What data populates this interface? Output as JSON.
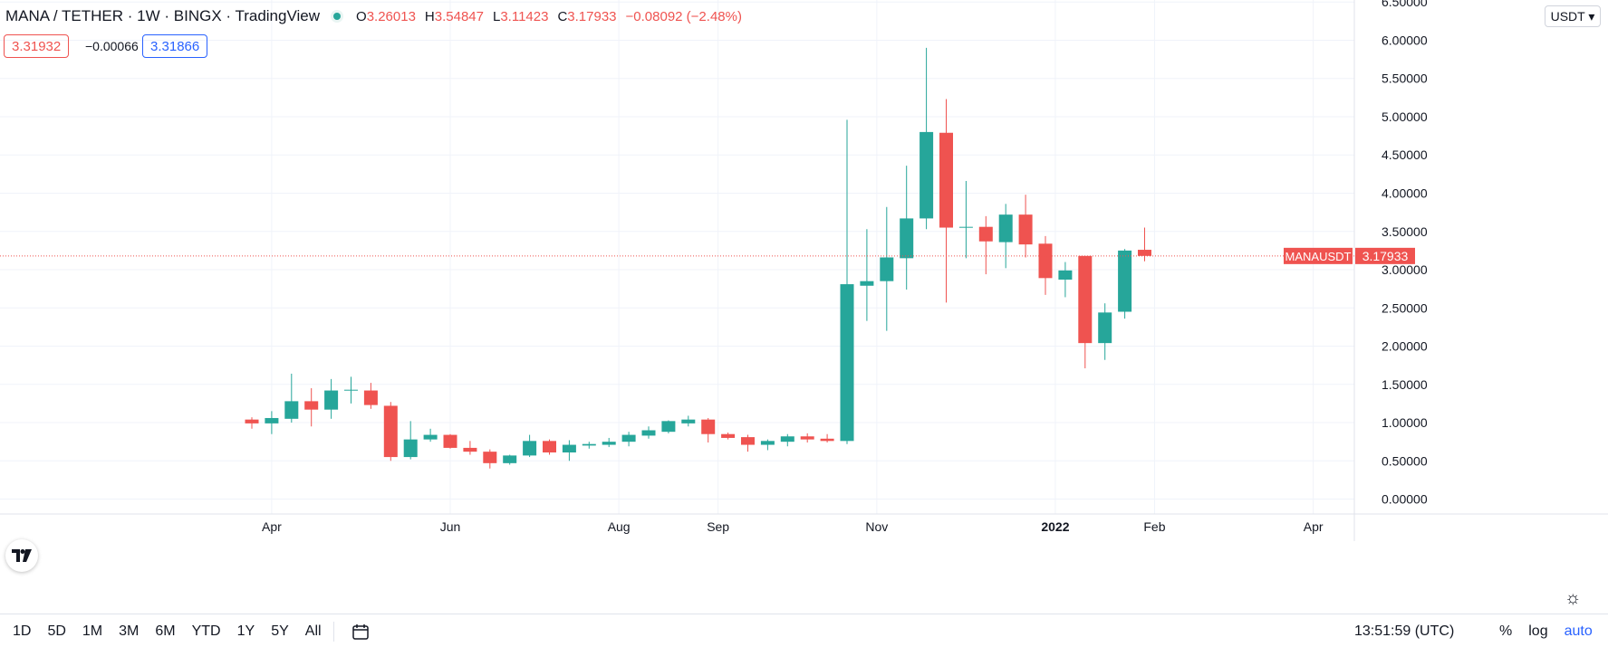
{
  "header": {
    "symbol": "MANA / TETHER · 1W · BINGX · TradingView",
    "ohlc": {
      "o_label": "O",
      "o": "3.26013",
      "h_label": "H",
      "h": "3.54847",
      "l_label": "L",
      "l": "3.11423",
      "c_label": "C",
      "c": "3.17933",
      "change": "−0.08092 (−2.48%)"
    },
    "bid": "3.31932",
    "spread": "−0.00066",
    "ask": "3.31866"
  },
  "currency_selector": "USDT",
  "current_price_label": {
    "symbol": "MANAUSDT",
    "price": "3.17933"
  },
  "bottom_bar": {
    "ranges": [
      "1D",
      "5D",
      "1M",
      "3M",
      "6M",
      "YTD",
      "1Y",
      "5Y",
      "All"
    ],
    "time": "13:51:59 (UTC)",
    "percent": "%",
    "log": "log",
    "auto": "auto"
  },
  "colors": {
    "up": "#26a69a",
    "down": "#ef5350",
    "grid": "#f0f3fa",
    "price_line": "#ef5350"
  },
  "chart_data": {
    "type": "candlestick",
    "y_ticks": [
      "0.00000",
      "0.50000",
      "1.00000",
      "1.50000",
      "2.00000",
      "2.50000",
      "3.00000",
      "3.50000",
      "4.00000",
      "4.50000",
      "5.00000",
      "5.50000",
      "6.00000",
      "6.50000"
    ],
    "y_range": [
      -0.1,
      6.55
    ],
    "x_ticks": [
      "Apr",
      "Jun",
      "Aug",
      "Sep",
      "Nov",
      "2022",
      "Feb",
      "Apr"
    ],
    "x_tick_index": [
      1.0,
      10.0,
      18.5,
      23.5,
      31.5,
      40.5,
      45.5,
      53.5
    ],
    "last_price": 3.17933,
    "candles": [
      {
        "o": 1.04,
        "h": 1.07,
        "l": 0.92,
        "c": 0.99
      },
      {
        "o": 0.99,
        "h": 1.15,
        "l": 0.85,
        "c": 1.06
      },
      {
        "o": 1.05,
        "h": 1.64,
        "l": 1.0,
        "c": 1.28
      },
      {
        "o": 1.28,
        "h": 1.45,
        "l": 0.95,
        "c": 1.17
      },
      {
        "o": 1.17,
        "h": 1.57,
        "l": 1.05,
        "c": 1.42
      },
      {
        "o": 1.42,
        "h": 1.6,
        "l": 1.25,
        "c": 1.43
      },
      {
        "o": 1.42,
        "h": 1.52,
        "l": 1.18,
        "c": 1.23
      },
      {
        "o": 1.22,
        "h": 1.27,
        "l": 0.5,
        "c": 0.55
      },
      {
        "o": 0.55,
        "h": 1.02,
        "l": 0.52,
        "c": 0.78
      },
      {
        "o": 0.78,
        "h": 0.92,
        "l": 0.75,
        "c": 0.84
      },
      {
        "o": 0.84,
        "h": 0.85,
        "l": 0.66,
        "c": 0.67
      },
      {
        "o": 0.67,
        "h": 0.76,
        "l": 0.58,
        "c": 0.62
      },
      {
        "o": 0.62,
        "h": 0.65,
        "l": 0.4,
        "c": 0.47
      },
      {
        "o": 0.47,
        "h": 0.58,
        "l": 0.45,
        "c": 0.57
      },
      {
        "o": 0.57,
        "h": 0.84,
        "l": 0.55,
        "c": 0.76
      },
      {
        "o": 0.76,
        "h": 0.78,
        "l": 0.58,
        "c": 0.61
      },
      {
        "o": 0.61,
        "h": 0.77,
        "l": 0.5,
        "c": 0.71
      },
      {
        "o": 0.7,
        "h": 0.75,
        "l": 0.66,
        "c": 0.72
      },
      {
        "o": 0.71,
        "h": 0.8,
        "l": 0.68,
        "c": 0.75
      },
      {
        "o": 0.75,
        "h": 0.88,
        "l": 0.69,
        "c": 0.84
      },
      {
        "o": 0.83,
        "h": 0.95,
        "l": 0.79,
        "c": 0.9
      },
      {
        "o": 0.88,
        "h": 1.03,
        "l": 0.86,
        "c": 1.02
      },
      {
        "o": 0.99,
        "h": 1.09,
        "l": 0.95,
        "c": 1.04
      },
      {
        "o": 1.04,
        "h": 1.06,
        "l": 0.74,
        "c": 0.85
      },
      {
        "o": 0.85,
        "h": 0.87,
        "l": 0.78,
        "c": 0.8
      },
      {
        "o": 0.81,
        "h": 0.84,
        "l": 0.62,
        "c": 0.71
      },
      {
        "o": 0.71,
        "h": 0.78,
        "l": 0.64,
        "c": 0.76
      },
      {
        "o": 0.75,
        "h": 0.85,
        "l": 0.69,
        "c": 0.82
      },
      {
        "o": 0.82,
        "h": 0.86,
        "l": 0.74,
        "c": 0.78
      },
      {
        "o": 0.79,
        "h": 0.85,
        "l": 0.74,
        "c": 0.76
      },
      {
        "o": 0.76,
        "h": 4.96,
        "l": 0.72,
        "c": 2.81
      },
      {
        "o": 2.79,
        "h": 3.53,
        "l": 2.33,
        "c": 2.85
      },
      {
        "o": 2.85,
        "h": 3.82,
        "l": 2.2,
        "c": 3.16
      },
      {
        "o": 3.15,
        "h": 4.36,
        "l": 2.74,
        "c": 3.67
      },
      {
        "o": 3.67,
        "h": 5.9,
        "l": 3.53,
        "c": 4.8
      },
      {
        "o": 4.79,
        "h": 5.23,
        "l": 2.57,
        "c": 3.55
      },
      {
        "o": 3.55,
        "h": 4.16,
        "l": 3.15,
        "c": 3.56
      },
      {
        "o": 3.56,
        "h": 3.7,
        "l": 2.94,
        "c": 3.37
      },
      {
        "o": 3.36,
        "h": 3.86,
        "l": 3.02,
        "c": 3.72
      },
      {
        "o": 3.72,
        "h": 3.98,
        "l": 3.16,
        "c": 3.33
      },
      {
        "o": 3.34,
        "h": 3.44,
        "l": 2.67,
        "c": 2.89
      },
      {
        "o": 2.87,
        "h": 3.1,
        "l": 2.64,
        "c": 2.99
      },
      {
        "o": 3.18,
        "h": 3.17,
        "l": 1.71,
        "c": 2.04
      },
      {
        "o": 2.04,
        "h": 2.56,
        "l": 1.82,
        "c": 2.44
      },
      {
        "o": 2.45,
        "h": 3.27,
        "l": 2.36,
        "c": 3.25
      },
      {
        "o": 3.26,
        "h": 3.55,
        "l": 3.11,
        "c": 3.18
      }
    ]
  }
}
